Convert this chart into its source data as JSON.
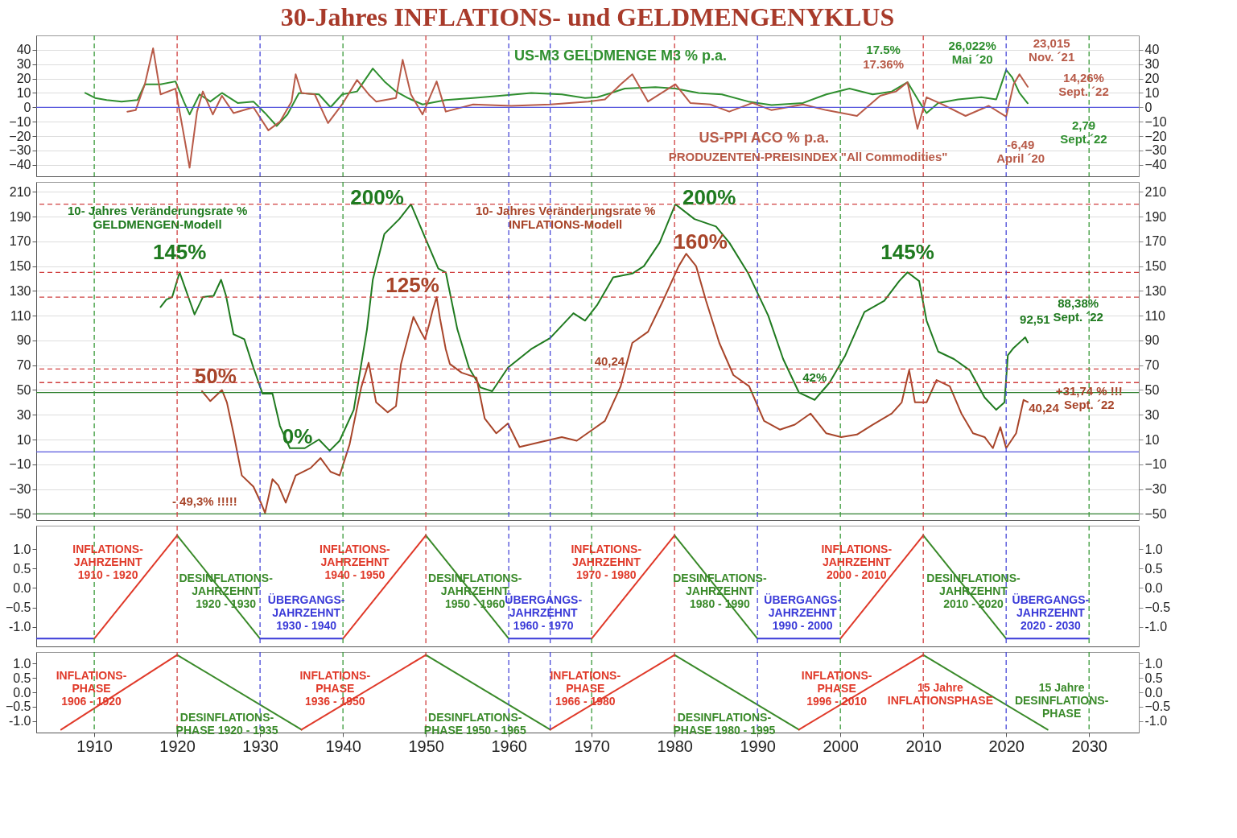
{
  "chart_data": [
    {
      "type": "line",
      "title": "30-Jahres INFLATIONS- und GELDMENGENYKLUS",
      "xlim": [
        1903,
        2036
      ],
      "ylim": [
        -48,
        50
      ],
      "yticks": [
        -40,
        -30,
        -20,
        -10,
        0,
        10,
        20,
        30,
        40
      ],
      "y2lim": [
        -48,
        50
      ],
      "y2ticks": [
        -40,
        -30,
        -20,
        -10,
        0,
        10,
        20,
        30,
        40
      ],
      "tick_labels": "y",
      "grid": "y",
      "series": [
        {
          "name": "US-M3 GELDMENGE  M3 % p.a.",
          "color": "#2f8f2f",
          "x": [
            1908.9,
            1910.1,
            1911.5,
            1913.3,
            1915.2,
            1916.1,
            1918.0,
            1919.8,
            1920.8,
            1921.5,
            1922.7,
            1924.0,
            1925.4,
            1927.3,
            1929.2,
            1930.6,
            1932.0,
            1933.3,
            1934.7,
            1937.1,
            1938.5,
            1939.9,
            1941.7,
            1943.6,
            1945.0,
            1946.4,
            1947.8,
            1949.6,
            1952.4,
            1955.7,
            1958.9,
            1962.7,
            1966.4,
            1969.2,
            1970.7,
            1974.0,
            1977.7,
            1980.1,
            1982.9,
            1985.7,
            1988.9,
            1991.7,
            1995.5,
            1998.3,
            2001.1,
            2003.9,
            2006.2,
            2008.1,
            2009.5,
            2010.4,
            2011.8,
            2014.2,
            2017.0,
            2018.8,
            2020.0,
            2020.7,
            2021.6,
            2022.6
          ],
          "values": [
            10,
            6.5,
            5,
            4,
            5,
            16,
            16,
            18,
            4,
            -5,
            9,
            4,
            10,
            3,
            4,
            -4,
            -13,
            -5,
            10,
            9,
            0,
            9,
            11,
            27,
            18,
            11,
            6.5,
            2,
            5,
            6.5,
            8,
            10,
            9,
            6.5,
            7,
            13,
            14,
            13,
            10,
            9,
            4,
            1.5,
            3,
            9,
            13,
            9,
            11,
            17.5,
            4,
            -4,
            3,
            5.5,
            7,
            5.5,
            26.022,
            21,
            10,
            2.79
          ]
        },
        {
          "name": "US-PPI ACO % p.a.",
          "color": "#b85a48",
          "x": [
            1914.0,
            1915.0,
            1916.1,
            1917.1,
            1918.0,
            1919.8,
            1920.8,
            1921.5,
            1922.4,
            1923.1,
            1924.3,
            1925.4,
            1926.8,
            1929.2,
            1931.0,
            1932.4,
            1933.8,
            1934.3,
            1935.0,
            1936.6,
            1938.2,
            1939.9,
            1941.7,
            1943.1,
            1944.0,
            1946.4,
            1947.2,
            1948.2,
            1949.6,
            1951.3,
            1952.4,
            1955.7,
            1960.3,
            1965.0,
            1969.6,
            1971.6,
            1973.5,
            1974.9,
            1976.8,
            1980.1,
            1981.9,
            1984.3,
            1986.6,
            1989.4,
            1991.7,
            1995.5,
            1998.3,
            2002.0,
            2004.8,
            2006.7,
            2008.1,
            2009.3,
            2010.4,
            2012.3,
            2015.1,
            2017.9,
            2020.0,
            2020.9,
            2021.6,
            2022.6
          ],
          "values": [
            -3,
            -2,
            16,
            41,
            9,
            13,
            -19,
            -42,
            -3,
            11,
            -5,
            8,
            -4,
            0,
            -16,
            -10,
            4,
            23,
            10,
            9,
            -11,
            2,
            19,
            9,
            4,
            6.5,
            33,
            9,
            -5,
            18,
            -3,
            2,
            1,
            2,
            4,
            5.5,
            16,
            23,
            4,
            16,
            3,
            2,
            -3,
            3,
            -2,
            2,
            -2,
            -6,
            8,
            11,
            17.36,
            -15,
            7,
            2,
            -6,
            1,
            -6.49,
            16,
            23.015,
            14.26
          ]
        }
      ],
      "ref_lines": [
        {
          "axis": "y",
          "value": 0,
          "color": "#5555dd",
          "line_style": "solid"
        },
        {
          "axis": "x",
          "value": 1910,
          "color": "#3a9a3a",
          "line_style": "dashed"
        },
        {
          "axis": "x",
          "value": 1920,
          "color": "#d04040",
          "line_style": "dashed"
        },
        {
          "axis": "x",
          "value": 1930,
          "color": "#4848d8",
          "line_style": "dashed"
        },
        {
          "axis": "x",
          "value": 1940,
          "color": "#3a9a3a",
          "line_style": "dashed"
        },
        {
          "axis": "x",
          "value": 1950,
          "color": "#d04040",
          "line_style": "dashed"
        },
        {
          "axis": "x",
          "value": 1960,
          "color": "#4848d8",
          "line_style": "dashed"
        },
        {
          "axis": "x",
          "value": 1965,
          "color": "#4848d8",
          "line_style": "dashed"
        },
        {
          "axis": "x",
          "value": 1970,
          "color": "#3a9a3a",
          "line_style": "dashed"
        },
        {
          "axis": "x",
          "value": 1980,
          "color": "#d04040",
          "line_style": "dashed"
        },
        {
          "axis": "x",
          "value": 1990,
          "color": "#4848d8",
          "line_style": "dashed"
        },
        {
          "axis": "x",
          "value": 2000,
          "color": "#3a9a3a",
          "line_style": "dashed"
        },
        {
          "axis": "x",
          "value": 2010,
          "color": "#d04040",
          "line_style": "dashed"
        },
        {
          "axis": "x",
          "value": 2020,
          "color": "#4848d8",
          "line_style": "dashed"
        },
        {
          "axis": "x",
          "value": 2030,
          "color": "#3a9a3a",
          "line_style": "dashed"
        }
      ],
      "annotations": [
        "PRODUZENTEN-PREISINDEX \"All Commodities\"",
        {
          "text": "17.5%",
          "x": 2008.1,
          "y": 17.5
        },
        {
          "text": "17.36%",
          "x": 2008.1,
          "y": 17.36
        },
        {
          "text": "26,022%\nMai ´20",
          "x": 2020.0,
          "y": 26.022
        },
        {
          "text": "23,015\nNov. ´21",
          "x": 2021.6,
          "y": 23.015
        },
        "14,26%\nSept. ´22",
        "2,79\nSept.´22",
        {
          "text": "-6,49\nApril ´20",
          "x": 2020.0,
          "y": -6.49
        }
      ]
    },
    {
      "type": "line",
      "xlim": [
        1903,
        2036
      ],
      "ylim": [
        -55,
        218
      ],
      "yticks": [
        -50,
        -30,
        -10,
        10,
        30,
        50,
        70,
        90,
        110,
        130,
        150,
        170,
        190,
        210
      ],
      "y2lim": [
        -55,
        218
      ],
      "y2ticks": [
        -50,
        -30,
        -10,
        10,
        30,
        50,
        70,
        90,
        110,
        130,
        150,
        170,
        190,
        210
      ],
      "tick_labels": "y",
      "grid": "y",
      "series": [
        {
          "color": "#1f7a1f",
          "x": [
            1918.0,
            1918.7,
            1919.4,
            1920.3,
            1921.3,
            1922.1,
            1923.1,
            1924.4,
            1925.3,
            1925.9,
            1926.8,
            1928.1,
            1929.2,
            1930.3,
            1931.5,
            1932.4,
            1933.6,
            1935.4,
            1937.1,
            1938.4,
            1939.6,
            1941.3,
            1942.9,
            1943.6,
            1945.0,
            1946.8,
            1948.2,
            1950.1,
            1951.5,
            1952.4,
            1953.8,
            1955.2,
            1956.6,
            1958.0,
            1959.9,
            1962.7,
            1965.0,
            1967.8,
            1969.2,
            1970.7,
            1972.6,
            1974.9,
            1976.3,
            1978.2,
            1980.1,
            1982.4,
            1985.0,
            1986.6,
            1988.9,
            1991.3,
            1993.1,
            1995.0,
            1996.9,
            1998.7,
            2000.6,
            2002.9,
            2005.3,
            2007.1,
            2008.1,
            2009.5,
            2010.4,
            2011.8,
            2013.7,
            2015.6,
            2017.4,
            2018.8,
            2019.8,
            2020.2,
            2020.9,
            2022.3,
            2022.6
          ],
          "values": [
            117,
            123,
            125,
            145,
            126,
            111,
            125,
            126,
            139,
            126,
            95,
            91,
            68,
            47,
            47,
            21,
            3,
            3,
            10,
            1,
            9,
            34,
            99,
            139,
            176,
            188,
            200,
            170,
            148,
            145,
            99,
            68,
            52,
            49,
            68,
            83,
            92,
            112,
            106,
            119,
            141,
            144,
            150,
            169,
            200,
            188,
            182,
            169,
            144,
            110,
            75,
            48,
            42,
            56,
            78,
            113,
            122,
            138,
            145,
            138,
            106,
            81,
            75,
            66,
            44,
            34,
            40,
            78,
            84,
            92.51,
            88.38
          ]
        },
        {
          "color": "#a8452a",
          "x": [
            1923.0,
            1924.0,
            1925.4,
            1926.0,
            1926.8,
            1927.8,
            1929.2,
            1930.1,
            1930.6,
            1931.5,
            1932.2,
            1933.1,
            1934.3,
            1936.1,
            1937.3,
            1938.5,
            1939.6,
            1940.8,
            1942.2,
            1943.1,
            1944.0,
            1945.4,
            1946.4,
            1947.0,
            1948.5,
            1949.4,
            1949.9,
            1950.4,
            1950.8,
            1951.3,
            1951.7,
            1952.4,
            1952.9,
            1954.3,
            1956.1,
            1957.1,
            1958.5,
            1959.9,
            1961.3,
            1964.5,
            1966.4,
            1968.2,
            1970.1,
            1971.6,
            1973.5,
            1974.9,
            1976.8,
            1978.6,
            1980.5,
            1981.4,
            1982.6,
            1983.8,
            1985.4,
            1987.1,
            1989.0,
            1990.8,
            1992.7,
            1994.5,
            1996.4,
            1998.3,
            2000.1,
            2002.0,
            2003.9,
            2006.2,
            2007.4,
            2008.3,
            2009.0,
            2010.4,
            2011.6,
            2013.2,
            2014.6,
            2016.0,
            2017.4,
            2018.4,
            2019.3,
            2020.0,
            2021.2,
            2022.1,
            2022.6
          ],
          "values": [
            49,
            41,
            50,
            40,
            15,
            -19,
            -28,
            -41,
            -49.3,
            -22,
            -27,
            -41,
            -19,
            -13,
            -5,
            -16,
            -19,
            6,
            52,
            72,
            40,
            32,
            37,
            71,
            109,
            97,
            91,
            103,
            114,
            125,
            108,
            83,
            71,
            64,
            60,
            27,
            15,
            23,
            4,
            9,
            12,
            9,
            18,
            25,
            53,
            88,
            97,
            122,
            150,
            160,
            150,
            122,
            88,
            62,
            53,
            25,
            18,
            22,
            31,
            15,
            12,
            14,
            22,
            31,
            40,
            66,
            40,
            40,
            58,
            53,
            31,
            15,
            12,
            3,
            20,
            3,
            15,
            42,
            40.24
          ]
        }
      ],
      "ref_lines": [
        {
          "axis": "y",
          "value": 200,
          "color": "#d04040",
          "line_style": "dashed"
        },
        {
          "axis": "y",
          "value": 145,
          "color": "#d04040",
          "line_style": "dashed"
        },
        {
          "axis": "y",
          "value": 125,
          "color": "#d04040",
          "line_style": "dashed"
        },
        {
          "axis": "y",
          "value": 67,
          "color": "#d04040",
          "line_style": "dashed"
        },
        {
          "axis": "y",
          "value": 56,
          "color": "#d04040",
          "line_style": "dashed"
        },
        {
          "axis": "y",
          "value": 48,
          "color": "#2f7f2f",
          "line_style": "solid"
        },
        {
          "axis": "y",
          "value": 0,
          "color": "#5555dd",
          "line_style": "solid"
        },
        {
          "axis": "y",
          "value": -50,
          "color": "#2f7f2f",
          "line_style": "solid"
        },
        {
          "axis": "x",
          "value": 1910,
          "color": "#3a9a3a",
          "line_style": "dashed"
        },
        {
          "axis": "x",
          "value": 1920,
          "color": "#d04040",
          "line_style": "dashed"
        },
        {
          "axis": "x",
          "value": 1930,
          "color": "#4848d8",
          "line_style": "dashed"
        },
        {
          "axis": "x",
          "value": 1940,
          "color": "#3a9a3a",
          "line_style": "dashed"
        },
        {
          "axis": "x",
          "value": 1950,
          "color": "#d04040",
          "line_style": "dashed"
        },
        {
          "axis": "x",
          "value": 1960,
          "color": "#4848d8",
          "line_style": "dashed"
        },
        {
          "axis": "x",
          "value": 1965,
          "color": "#4848d8",
          "line_style": "dashed"
        },
        {
          "axis": "x",
          "value": 1970,
          "color": "#3a9a3a",
          "line_style": "dashed"
        },
        {
          "axis": "x",
          "value": 1980,
          "color": "#d04040",
          "line_style": "dashed"
        },
        {
          "axis": "x",
          "value": 1990,
          "color": "#4848d8",
          "line_style": "dashed"
        },
        {
          "axis": "x",
          "value": 2000,
          "color": "#3a9a3a",
          "line_style": "dashed"
        },
        {
          "axis": "x",
          "value": 2010,
          "color": "#d04040",
          "line_style": "dashed"
        },
        {
          "axis": "x",
          "value": 2020,
          "color": "#4848d8",
          "line_style": "dashed"
        },
        {
          "axis": "x",
          "value": 2030,
          "color": "#3a9a3a",
          "line_style": "dashed"
        }
      ],
      "annotations": [
        "10- Jahres  Veränderungsrate %\nGELDMENGEN-Modell",
        "10- Jahres Veränderungsrate %\nINFLATIONS-Modell",
        "40,24",
        "88,38%\nSept. ´22",
        "+31,74 % !!!\nSept. ´22",
        {
          "text": "145%",
          "x": 1920.3,
          "y": 145
        },
        {
          "text": "200%",
          "x": 1948.2,
          "y": 200
        },
        {
          "text": "200%",
          "x": 1980.1,
          "y": 200
        },
        {
          "text": "160%",
          "x": 1981.4,
          "y": 160
        },
        {
          "text": "125%",
          "x": 1951.3,
          "y": 125
        },
        {
          "text": "50%",
          "x": 1925.4,
          "y": 50
        },
        {
          "text": "0%",
          "x": 1934.5,
          "y": 3
        },
        {
          "text": "- 49,3% !!!!!",
          "x": 1930.6,
          "y": -49.3
        },
        {
          "text": "145%",
          "x": 2008.1,
          "y": 145
        },
        {
          "text": "42%",
          "x": 1996.9,
          "y": 42
        },
        {
          "text": "92,51",
          "x": 2022.3,
          "y": 92.51
        },
        {
          "text": "40,24",
          "x": 2022.6,
          "y": 40.24
        }
      ]
    },
    {
      "type": "line",
      "xlim": [
        1903,
        2036
      ],
      "ylim": [
        -1.5,
        1.6
      ],
      "yticks": [
        {
          "value": 1,
          "label": "1.0"
        },
        0.5,
        {
          "value": 0,
          "label": "0.0"
        },
        -0.5,
        {
          "value": -1,
          "label": "-1.0"
        }
      ],
      "y2lim": [
        -1.5,
        1.6
      ],
      "y2ticks": [
        {
          "value": 1,
          "label": "1.0"
        },
        0.5,
        {
          "value": 0,
          "label": "0.0"
        },
        -0.5,
        {
          "value": -1,
          "label": "-1.0"
        }
      ],
      "tick_labels": "y",
      "series": [
        {
          "color": "#3a3ad8",
          "x": [
            1903,
            1910
          ],
          "values": [
            -1.3,
            -1.3
          ]
        },
        {
          "color": "#e03a2a",
          "x": [
            1910,
            1920
          ],
          "values": [
            -1.3,
            1.35
          ]
        },
        {
          "color": "#3a8a2a",
          "x": [
            1920,
            1930
          ],
          "values": [
            1.35,
            -1.3
          ]
        },
        {
          "color": "#3a3ad8",
          "x": [
            1930,
            1940
          ],
          "values": [
            -1.3,
            -1.3
          ]
        },
        {
          "color": "#e03a2a",
          "x": [
            1940,
            1950
          ],
          "values": [
            -1.3,
            1.35
          ]
        },
        {
          "color": "#3a8a2a",
          "x": [
            1950,
            1960
          ],
          "values": [
            1.35,
            -1.3
          ]
        },
        {
          "color": "#3a3ad8",
          "x": [
            1960,
            1970
          ],
          "values": [
            -1.3,
            -1.3
          ]
        },
        {
          "color": "#e03a2a",
          "x": [
            1970,
            1980
          ],
          "values": [
            -1.3,
            1.35
          ]
        },
        {
          "color": "#3a8a2a",
          "x": [
            1980,
            1990
          ],
          "values": [
            1.35,
            -1.3
          ]
        },
        {
          "color": "#3a3ad8",
          "x": [
            1990,
            2000
          ],
          "values": [
            -1.3,
            -1.3
          ]
        },
        {
          "color": "#e03a2a",
          "x": [
            2000,
            2010
          ],
          "values": [
            -1.3,
            1.35
          ]
        },
        {
          "color": "#3a8a2a",
          "x": [
            2010,
            2020
          ],
          "values": [
            1.35,
            -1.3
          ]
        },
        {
          "color": "#3a3ad8",
          "x": [
            2020,
            2030
          ],
          "values": [
            -1.3,
            -1.3
          ]
        }
      ],
      "ref_lines": [
        {
          "axis": "x",
          "value": 1910,
          "color": "#3a9a3a",
          "line_style": "dashed"
        },
        {
          "axis": "x",
          "value": 1920,
          "color": "#d04040",
          "line_style": "dashed"
        },
        {
          "axis": "x",
          "value": 1930,
          "color": "#4848d8",
          "line_style": "dashed"
        },
        {
          "axis": "x",
          "value": 1940,
          "color": "#3a9a3a",
          "line_style": "dashed"
        },
        {
          "axis": "x",
          "value": 1950,
          "color": "#d04040",
          "line_style": "dashed"
        },
        {
          "axis": "x",
          "value": 1960,
          "color": "#4848d8",
          "line_style": "dashed"
        },
        {
          "axis": "x",
          "value": 1965,
          "color": "#4848d8",
          "line_style": "dashed"
        },
        {
          "axis": "x",
          "value": 1970,
          "color": "#3a9a3a",
          "line_style": "dashed"
        },
        {
          "axis": "x",
          "value": 1980,
          "color": "#d04040",
          "line_style": "dashed"
        },
        {
          "axis": "x",
          "value": 1990,
          "color": "#4848d8",
          "line_style": "dashed"
        },
        {
          "axis": "x",
          "value": 2000,
          "color": "#3a9a3a",
          "line_style": "dashed"
        },
        {
          "axis": "x",
          "value": 2010,
          "color": "#d04040",
          "line_style": "dashed"
        },
        {
          "axis": "x",
          "value": 2020,
          "color": "#4848d8",
          "line_style": "dashed"
        },
        {
          "axis": "x",
          "value": 2030,
          "color": "#3a9a3a",
          "line_style": "dashed"
        }
      ],
      "annotations": [
        "INFLATIONS-\nJAHRZEHNT\n1910 - 1920",
        "DESINFLATIONS-\nJAHRZEHNT\n1920 - 1930",
        "ÜBERGANGS-\nJAHRZEHNT\n1930 - 1940",
        "INFLATIONS-\nJAHRZEHNT\n1940 - 1950",
        "DESINFLATIONS-\nJAHRZEHNT\n1950 - 1960",
        "ÜBERGANGS-\nJAHRZEHNT\n1960 - 1970",
        "INFLATIONS-\nJAHRZEHNT\n1970 - 1980",
        "DESINFLATIONS-\nJAHRZEHNT\n1980 - 1990",
        "ÜBERGANGS-\nJAHRZEHNT\n1990 - 2000",
        "INFLATIONS-\nJAHRZEHNT\n2000 - 2010",
        "DESINFLATIONS-\nJAHRZEHNT\n2010 - 2020",
        "ÜBERGANGS-\nJAHRZEHNT\n2020 - 2030"
      ]
    },
    {
      "type": "line",
      "xlim": [
        1903,
        2036
      ],
      "xticks": [
        1910,
        1920,
        1930,
        1940,
        1950,
        1960,
        1970,
        1980,
        1990,
        2000,
        2010,
        2020,
        2030
      ],
      "ylim": [
        -1.4,
        1.4
      ],
      "yticks": [
        {
          "value": 1,
          "label": "1.0"
        },
        0.5,
        {
          "value": 0,
          "label": "0.0"
        },
        -0.5,
        {
          "value": -1,
          "label": "-1.0"
        }
      ],
      "y2lim": [
        -1.4,
        1.4
      ],
      "y2ticks": [
        {
          "value": 1,
          "label": "1.0"
        },
        0.5,
        {
          "value": 0,
          "label": "0.0"
        },
        -0.5,
        {
          "value": -1,
          "label": "-1.0"
        }
      ],
      "series": [
        {
          "color": "#e03a2a",
          "x": [
            1906,
            1920
          ],
          "values": [
            -1.3,
            1.3
          ]
        },
        {
          "color": "#3a8a2a",
          "x": [
            1920,
            1935
          ],
          "values": [
            1.3,
            -1.3
          ]
        },
        {
          "color": "#e03a2a",
          "x": [
            1935,
            1950
          ],
          "values": [
            -1.3,
            1.3
          ]
        },
        {
          "color": "#3a8a2a",
          "x": [
            1950,
            1965
          ],
          "values": [
            1.3,
            -1.3
          ]
        },
        {
          "color": "#e03a2a",
          "x": [
            1965,
            1980
          ],
          "values": [
            -1.3,
            1.3
          ]
        },
        {
          "color": "#3a8a2a",
          "x": [
            1980,
            1995
          ],
          "values": [
            1.3,
            -1.3
          ]
        },
        {
          "color": "#e03a2a",
          "x": [
            1995,
            2010
          ],
          "values": [
            -1.3,
            1.3
          ]
        },
        {
          "color": "#3a8a2a",
          "x": [
            2010,
            2025
          ],
          "values": [
            1.3,
            -1.3
          ]
        }
      ],
      "ref_lines": [
        {
          "axis": "x",
          "value": 1910,
          "color": "#3a9a3a",
          "line_style": "dashed"
        },
        {
          "axis": "x",
          "value": 1920,
          "color": "#d04040",
          "line_style": "dashed"
        },
        {
          "axis": "x",
          "value": 1930,
          "color": "#4848d8",
          "line_style": "dashed"
        },
        {
          "axis": "x",
          "value": 1940,
          "color": "#3a9a3a",
          "line_style": "dashed"
        },
        {
          "axis": "x",
          "value": 1950,
          "color": "#d04040",
          "line_style": "dashed"
        },
        {
          "axis": "x",
          "value": 1960,
          "color": "#4848d8",
          "line_style": "dashed"
        },
        {
          "axis": "x",
          "value": 1965,
          "color": "#4848d8",
          "line_style": "dashed"
        },
        {
          "axis": "x",
          "value": 1970,
          "color": "#3a9a3a",
          "line_style": "dashed"
        },
        {
          "axis": "x",
          "value": 1980,
          "color": "#d04040",
          "line_style": "dashed"
        },
        {
          "axis": "x",
          "value": 1990,
          "color": "#4848d8",
          "line_style": "dashed"
        },
        {
          "axis": "x",
          "value": 2000,
          "color": "#3a9a3a",
          "line_style": "dashed"
        },
        {
          "axis": "x",
          "value": 2010,
          "color": "#d04040",
          "line_style": "dashed"
        },
        {
          "axis": "x",
          "value": 2020,
          "color": "#4848d8",
          "line_style": "dashed"
        },
        {
          "axis": "x",
          "value": 2030,
          "color": "#3a9a3a",
          "line_style": "dashed"
        }
      ],
      "annotations": [
        "15 Jahre\nINFLATIONSPHASE",
        "15 Jahre\nDESINFLATIONS-\nPHASE",
        "INFLATIONS-\nPHASE\n1906 - 1920",
        "DESINFLATIONS-\nPHASE 1920 - 1935",
        "INFLATIONS-\nPHASE\n1936 - 1950",
        "DESINFLATIONS-\nPHASE 1950 - 1965",
        "INFLATIONS-\nPHASE\n1966 - 1980",
        "DESINFLATIONS-\nPHASE 1980 - 1995",
        "INFLATIONS-\nPHASE\n1996 - 2010"
      ]
    }
  ]
}
